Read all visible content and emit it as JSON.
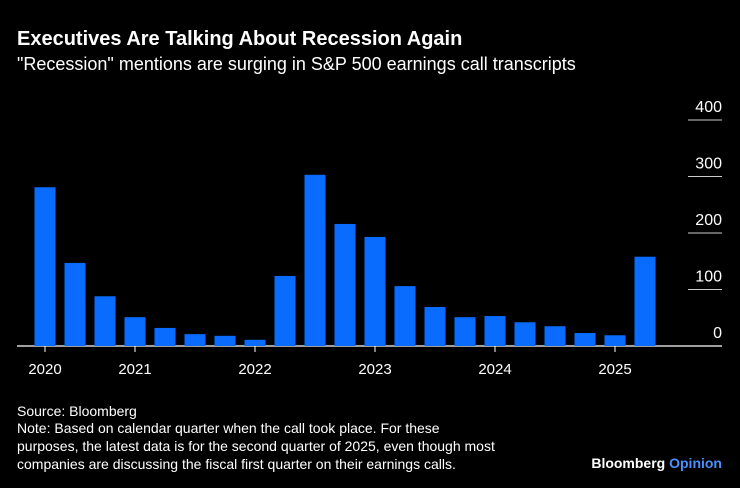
{
  "chart_data": {
    "type": "bar",
    "title": "Executives Are Talking About Recession Again",
    "subtitle": "\"Recession\" mentions are surging in S&P 500 earnings call transcripts",
    "categories": [
      "2020",
      null,
      null,
      "2021",
      null,
      null,
      null,
      "2022",
      null,
      null,
      null,
      "2023",
      null,
      null,
      null,
      "2024",
      null,
      null,
      null,
      "2025",
      null
    ],
    "values": [
      281,
      147,
      88,
      51,
      32,
      21,
      18,
      11,
      124,
      303,
      216,
      193,
      106,
      69,
      51,
      53,
      42,
      35,
      23,
      19,
      158
    ],
    "color": "#0a6cff",
    "ylim": [
      0,
      400
    ],
    "yticks": [
      0,
      100,
      200,
      300,
      400
    ],
    "grid": true,
    "source": "Source: Bloomberg",
    "note": [
      "Note: Based on calendar quarter when the call took place. For these",
      "purposes, the latest data is for the second quarter of 2025, even though most",
      "companies are discussing the fiscal first quarter on their earnings calls."
    ],
    "brand": [
      "Bloomberg",
      "Opinion"
    ]
  }
}
